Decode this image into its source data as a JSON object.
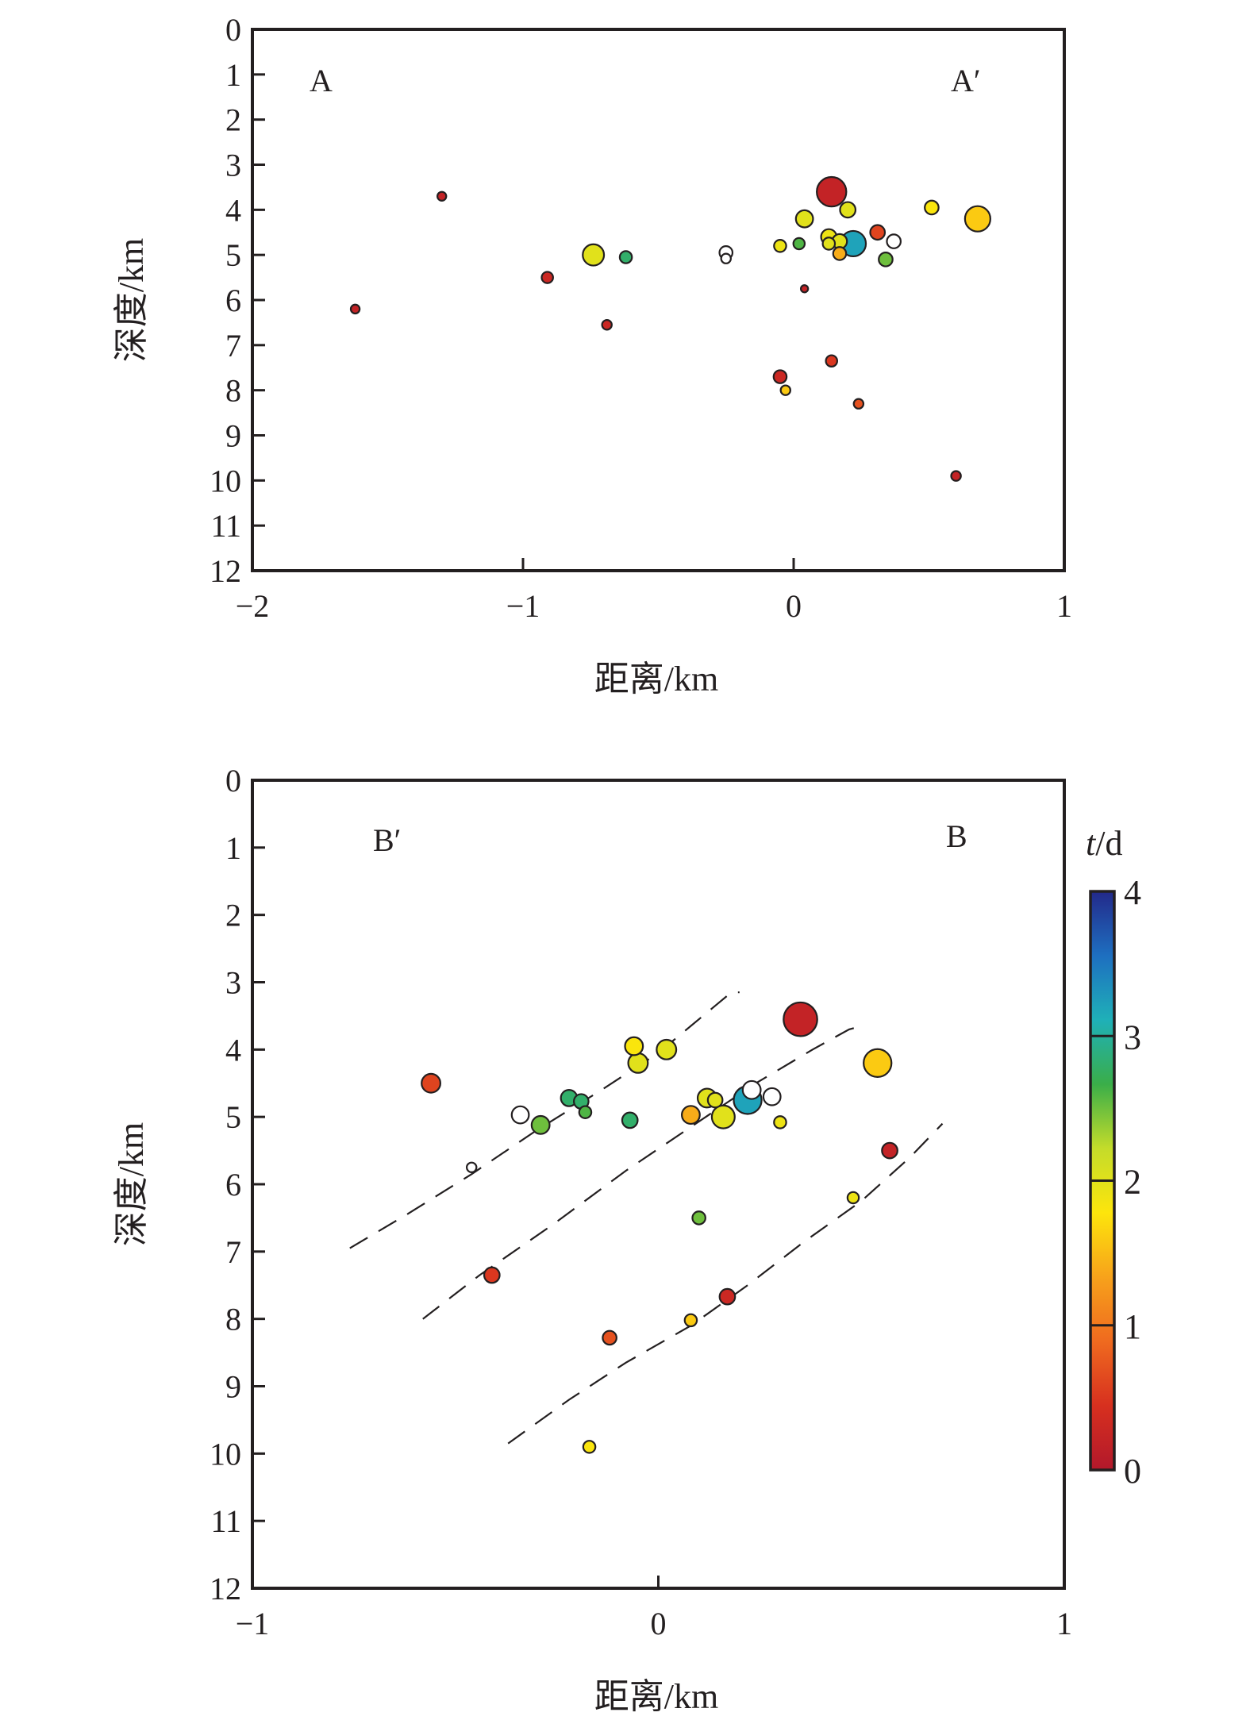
{
  "colors": {
    "axis": "#231f20",
    "scale": [
      "#b2182b",
      "#d7301f",
      "#ef6a1f",
      "#f7a21b",
      "#fde50c",
      "#c4dc2a",
      "#3aae49",
      "#1fb0b8",
      "#1e6fc0",
      "#23298a"
    ]
  },
  "chart_data": [
    {
      "type": "scatter",
      "panel": "top",
      "xlabel": "距离/km",
      "ylabel": "深度/km",
      "xlim": [
        -2,
        1
      ],
      "ylim": [
        12,
        0
      ],
      "xticks": [
        -2,
        -1,
        0,
        1
      ],
      "xtick_labels": [
        "−2",
        "−1",
        "0",
        "1"
      ],
      "yticks": [
        0,
        1,
        2,
        3,
        4,
        5,
        6,
        7,
        8,
        9,
        10,
        11,
        12
      ],
      "ytick_labels": [
        "0",
        "1",
        "2",
        "3",
        "4",
        "5",
        "6",
        "7",
        "8",
        "9",
        "10",
        "11",
        "12"
      ],
      "corner_labels": [
        "A",
        "A′"
      ],
      "points": [
        {
          "x": 0.14,
          "y": 3.6,
          "t": 0.2,
          "size": 3
        },
        {
          "x": 0.68,
          "y": 4.2,
          "t": 1.6,
          "size": 2.5
        },
        {
          "x": 0.22,
          "y": 4.75,
          "t": 3.2,
          "size": 2.5
        },
        {
          "x": -0.74,
          "y": 5.0,
          "t": 2.0,
          "size": 2
        },
        {
          "x": 0.04,
          "y": 4.2,
          "t": 2.0,
          "size": 1.5
        },
        {
          "x": 0.2,
          "y": 4.0,
          "t": 2.0,
          "size": 1.3
        },
        {
          "x": 0.13,
          "y": 4.6,
          "t": 1.9,
          "size": 1.3
        },
        {
          "x": 0.17,
          "y": 4.7,
          "t": 2.0,
          "size": 1.2
        },
        {
          "x": 0.31,
          "y": 4.5,
          "t": 0.6,
          "size": 1.2
        },
        {
          "x": 0.37,
          "y": 4.7,
          "t": -1,
          "size": 1.1
        },
        {
          "x": 0.51,
          "y": 3.95,
          "t": 1.8,
          "size": 1.1
        },
        {
          "x": 0.34,
          "y": 5.1,
          "t": 2.5,
          "size": 1.1
        },
        {
          "x": 0.17,
          "y": 4.97,
          "t": 1.4,
          "size": 1
        },
        {
          "x": 0.13,
          "y": 4.75,
          "t": 2.0,
          "size": 0.9
        },
        {
          "x": -0.25,
          "y": 4.95,
          "t": -1,
          "size": 1
        },
        {
          "x": -0.25,
          "y": 5.08,
          "t": -1,
          "size": 0.6
        },
        {
          "x": -0.62,
          "y": 5.05,
          "t": 2.8,
          "size": 0.9
        },
        {
          "x": -0.05,
          "y": 4.8,
          "t": 1.9,
          "size": 0.9
        },
        {
          "x": 0.02,
          "y": 4.75,
          "t": 2.6,
          "size": 0.8
        },
        {
          "x": -0.91,
          "y": 5.5,
          "t": 0.3,
          "size": 0.8
        },
        {
          "x": -0.69,
          "y": 6.55,
          "t": 0.3,
          "size": 0.6
        },
        {
          "x": -0.05,
          "y": 7.7,
          "t": 0.3,
          "size": 1
        },
        {
          "x": 0.14,
          "y": 7.35,
          "t": 0.5,
          "size": 0.8
        },
        {
          "x": -0.03,
          "y": 8.0,
          "t": 1.6,
          "size": 0.6
        },
        {
          "x": 0.24,
          "y": 8.3,
          "t": 0.7,
          "size": 0.6
        },
        {
          "x": 0.6,
          "y": 9.9,
          "t": 0.2,
          "size": 0.6
        },
        {
          "x": -1.3,
          "y": 3.7,
          "t": 0.2,
          "size": 0.5
        },
        {
          "x": -1.62,
          "y": 6.2,
          "t": 0.2,
          "size": 0.5
        },
        {
          "x": 0.04,
          "y": 5.75,
          "t": 0.2,
          "size": 0.3
        }
      ]
    },
    {
      "type": "scatter",
      "panel": "bottom",
      "xlabel": "距离/km",
      "ylabel": "深度/km",
      "xlim": [
        -1,
        1
      ],
      "ylim": [
        12,
        0
      ],
      "xticks": [
        -1,
        0,
        1
      ],
      "xtick_labels": [
        "−1",
        "0",
        "1"
      ],
      "yticks": [
        0,
        1,
        2,
        3,
        4,
        5,
        6,
        7,
        8,
        9,
        10,
        11,
        12
      ],
      "ytick_labels": [
        "0",
        "1",
        "2",
        "3",
        "4",
        "5",
        "6",
        "7",
        "8",
        "9",
        "10",
        "11",
        "12"
      ],
      "corner_labels": [
        "B′",
        "B"
      ],
      "points": [
        {
          "x": 0.35,
          "y": 3.55,
          "t": 0.2,
          "size": 3.5
        },
        {
          "x": 0.54,
          "y": 4.2,
          "t": 1.6,
          "size": 2.8
        },
        {
          "x": 0.22,
          "y": 4.75,
          "t": 3.2,
          "size": 2.8
        },
        {
          "x": 0.16,
          "y": 5.0,
          "t": 2.0,
          "size": 2.2
        },
        {
          "x": 0.23,
          "y": 4.6,
          "t": -1,
          "size": 1.6
        },
        {
          "x": 0.28,
          "y": 4.7,
          "t": -1,
          "size": 1.5
        },
        {
          "x": 0.12,
          "y": 4.72,
          "t": 2.0,
          "size": 1.7
        },
        {
          "x": 0.14,
          "y": 4.75,
          "t": 2.0,
          "size": 1.2
        },
        {
          "x": 0.08,
          "y": 4.97,
          "t": 1.4,
          "size": 1.6
        },
        {
          "x": 0.3,
          "y": 5.08,
          "t": 1.9,
          "size": 0.9
        },
        {
          "x": 0.02,
          "y": 4.0,
          "t": 2.0,
          "size": 1.8
        },
        {
          "x": -0.06,
          "y": 3.95,
          "t": 1.8,
          "size": 1.6
        },
        {
          "x": -0.05,
          "y": 4.2,
          "t": 2.0,
          "size": 1.8
        },
        {
          "x": -0.56,
          "y": 4.5,
          "t": 0.6,
          "size": 1.7
        },
        {
          "x": -0.34,
          "y": 4.97,
          "t": -1,
          "size": 1.5
        },
        {
          "x": -0.29,
          "y": 5.12,
          "t": 2.5,
          "size": 1.6
        },
        {
          "x": -0.22,
          "y": 4.72,
          "t": 2.8,
          "size": 1.4
        },
        {
          "x": -0.19,
          "y": 4.77,
          "t": 2.8,
          "size": 1.2
        },
        {
          "x": -0.18,
          "y": 4.93,
          "t": 2.6,
          "size": 0.9
        },
        {
          "x": -0.07,
          "y": 5.05,
          "t": 2.8,
          "size": 1.3
        },
        {
          "x": 0.57,
          "y": 5.5,
          "t": 0.2,
          "size": 1.3
        },
        {
          "x": 0.1,
          "y": 6.5,
          "t": 2.5,
          "size": 1
        },
        {
          "x": 0.48,
          "y": 6.2,
          "t": 1.9,
          "size": 0.8
        },
        {
          "x": -0.46,
          "y": 5.75,
          "t": -1,
          "size": 0.6
        },
        {
          "x": -0.41,
          "y": 7.35,
          "t": 0.5,
          "size": 1.3
        },
        {
          "x": 0.17,
          "y": 7.67,
          "t": 0.3,
          "size": 1.3
        },
        {
          "x": 0.08,
          "y": 8.02,
          "t": 1.6,
          "size": 0.9
        },
        {
          "x": -0.12,
          "y": 8.28,
          "t": 0.7,
          "size": 1.1
        },
        {
          "x": -0.17,
          "y": 9.9,
          "t": 1.8,
          "size": 0.9
        }
      ],
      "fault_lines": [
        [
          [
            -0.76,
            6.95
          ],
          [
            -0.62,
            6.45
          ],
          [
            -0.46,
            5.85
          ],
          [
            -0.3,
            5.2
          ],
          [
            -0.14,
            4.6
          ],
          [
            0.0,
            4.05
          ],
          [
            0.08,
            3.65
          ],
          [
            0.14,
            3.35
          ],
          [
            0.18,
            3.15
          ],
          [
            0.2,
            3.15
          ]
        ],
        [
          [
            -0.58,
            8.0
          ],
          [
            -0.44,
            7.35
          ],
          [
            -0.26,
            6.6
          ],
          [
            -0.08,
            5.8
          ],
          [
            0.08,
            5.15
          ],
          [
            0.24,
            4.5
          ],
          [
            0.38,
            4.0
          ],
          [
            0.47,
            3.7
          ],
          [
            0.5,
            3.65
          ]
        ],
        [
          [
            -0.37,
            9.85
          ],
          [
            -0.22,
            9.2
          ],
          [
            -0.08,
            8.65
          ],
          [
            0.08,
            8.1
          ],
          [
            0.22,
            7.5
          ],
          [
            0.36,
            6.85
          ],
          [
            0.5,
            6.25
          ],
          [
            0.62,
            5.6
          ],
          [
            0.7,
            5.1
          ]
        ]
      ]
    }
  ],
  "colorbar": {
    "label_t": "t",
    "label_rest": "/d",
    "min": 0,
    "max": 4,
    "ticks": [
      "0",
      "1",
      "2",
      "3",
      "4"
    ]
  }
}
